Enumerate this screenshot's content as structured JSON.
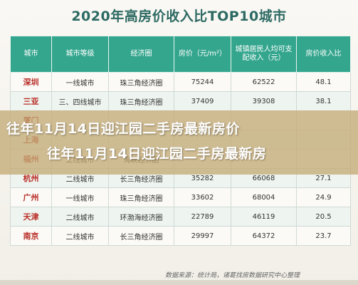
{
  "title": "2020年高房价收入比TOP10城市",
  "table": {
    "headers": [
      "城市",
      "城市等级",
      "经济圈",
      "房价（元/m²）",
      "城镇居民人均可支配收入（元）",
      "房价收入比"
    ],
    "rows": [
      [
        "深圳",
        "一线城市",
        "珠三角经济圈",
        "75244",
        "62522",
        "48.1"
      ],
      [
        "三亚",
        "三、四线城市",
        "珠三角经济圈",
        "37409",
        "39308",
        "38.1"
      ],
      [
        "厦门",
        "",
        "",
        "",
        "",
        ""
      ],
      [
        "上海",
        "",
        "",
        "",
        "",
        ""
      ],
      [
        "福州",
        "二线城市",
        "海峡经济圈",
        "",
        "",
        ""
      ],
      [
        "杭州",
        "二线城市",
        "长三角经济圈",
        "35282",
        "66068",
        "27.1"
      ],
      [
        "广州",
        "一线城市",
        "珠三角经济圈",
        "33602",
        "68004",
        "24.9"
      ],
      [
        "天津",
        "二线城市",
        "环渤海经济圈",
        "22789",
        "46119",
        "20.5"
      ],
      [
        "南京",
        "二线城市",
        "长三角经济圈",
        "29997",
        "64372",
        "23.7"
      ]
    ]
  },
  "banner": {
    "line1": "往年11月14日迎江园二手房最新房价",
    "line2": "往年11月14日迎江园二手房最新房"
  },
  "source": "数据来源：统计局，诸葛找房数据研究中心整理",
  "colors": {
    "header": "#35a68e",
    "title": "#2d6a63",
    "city": "#b92c25",
    "banner": "#c4aa76"
  }
}
